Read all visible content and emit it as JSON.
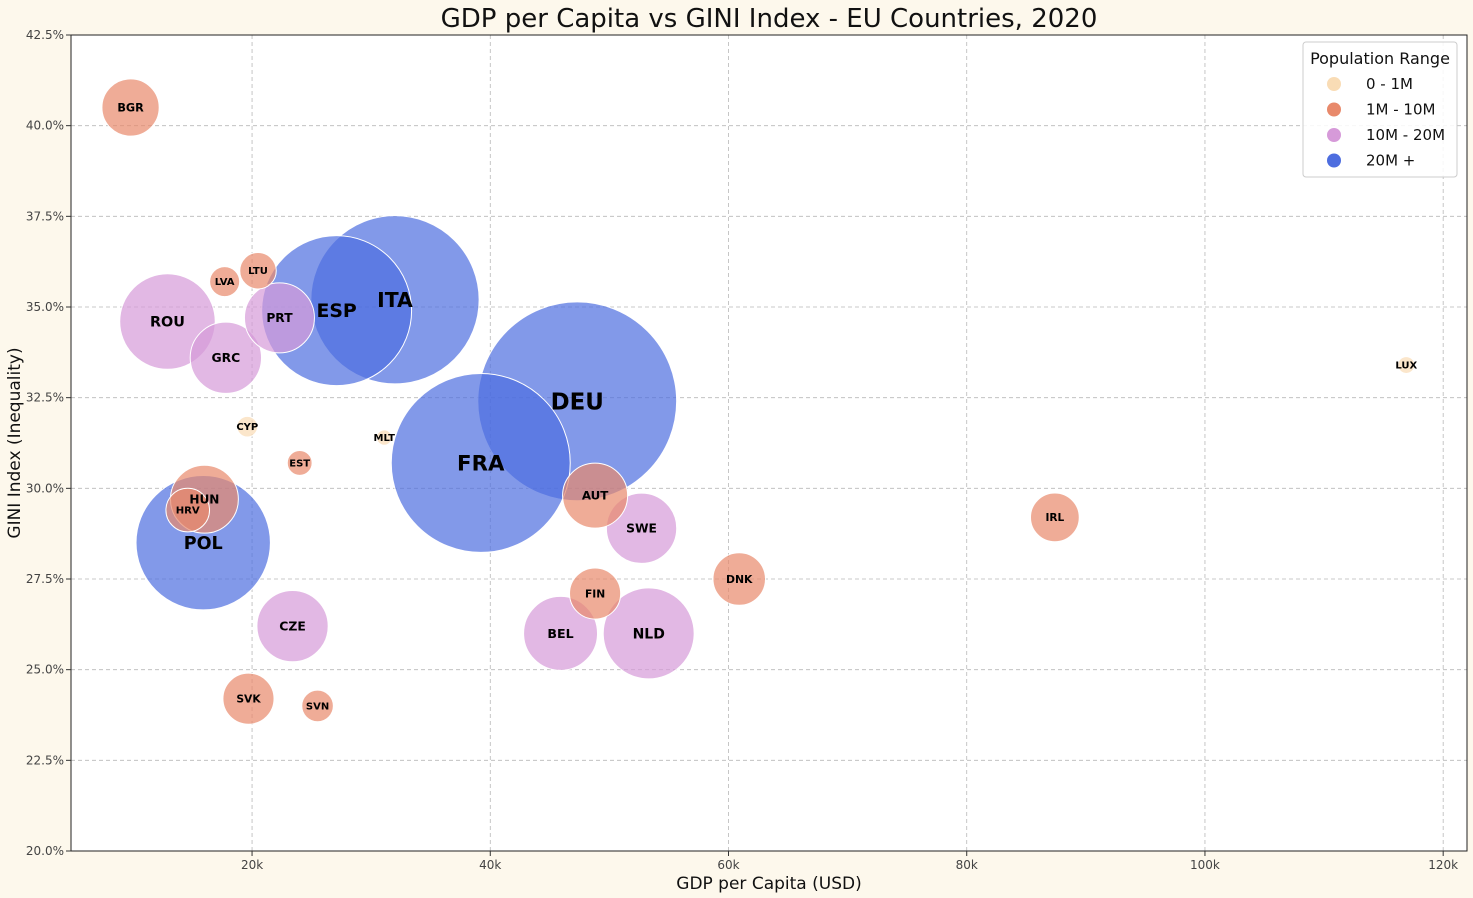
{
  "chart_data": {
    "type": "scatter",
    "title": "GDP per Capita vs GINI Index - EU Countries, 2020",
    "xlabel": "GDP per Capita (USD)",
    "ylabel": "GINI Index (Inequality)",
    "xlim": [
      4800,
      122000
    ],
    "ylim": [
      20.0,
      42.5
    ],
    "xticks": [
      20000,
      40000,
      60000,
      80000,
      100000,
      120000
    ],
    "xtick_labels": [
      "20k",
      "40k",
      "60k",
      "80k",
      "100k",
      "120k"
    ],
    "yticks": [
      20.0,
      22.5,
      25.0,
      27.5,
      30.0,
      32.5,
      35.0,
      37.5,
      40.0,
      42.5
    ],
    "ytick_labels": [
      "20.0%",
      "22.5%",
      "25.0%",
      "27.5%",
      "30.0%",
      "32.5%",
      "35.0%",
      "37.5%",
      "40.0%",
      "42.5%"
    ],
    "grid": true,
    "bubble_size": "population",
    "legend": {
      "title": "Population Range",
      "position": "top-right",
      "entries": [
        {
          "label": "0 - 1M",
          "color": "#f9dcb5"
        },
        {
          "label": "1M - 10M",
          "color": "#e8896b"
        },
        {
          "label": "10M - 20M",
          "color": "#d69ad9"
        },
        {
          "label": "20M +",
          "color": "#4d6ddf"
        }
      ]
    },
    "points": [
      {
        "label": "BGR",
        "x": 9800,
        "y": 40.5,
        "range": "1M - 10M",
        "population_m": 6.9
      },
      {
        "label": "LTU",
        "x": 20500,
        "y": 36.0,
        "range": "1M - 10M",
        "population_m": 2.8
      },
      {
        "label": "LVA",
        "x": 17700,
        "y": 35.7,
        "range": "1M - 10M",
        "population_m": 1.9
      },
      {
        "label": "ROU",
        "x": 12900,
        "y": 34.6,
        "range": "10M - 20M",
        "population_m": 19.2
      },
      {
        "label": "PRT",
        "x": 22300,
        "y": 34.7,
        "range": "10M - 20M",
        "population_m": 10.3
      },
      {
        "label": "GRC",
        "x": 17800,
        "y": 33.6,
        "range": "10M - 20M",
        "population_m": 10.7
      },
      {
        "label": "ESP",
        "x": 27100,
        "y": 34.9,
        "range": "20M +",
        "population_m": 47.3
      },
      {
        "label": "ITA",
        "x": 32000,
        "y": 35.2,
        "range": "20M +",
        "population_m": 59.6
      },
      {
        "label": "DEU",
        "x": 47300,
        "y": 32.4,
        "range": "20M +",
        "population_m": 83.2
      },
      {
        "label": "FRA",
        "x": 39200,
        "y": 30.7,
        "range": "20M +",
        "population_m": 67.4
      },
      {
        "label": "CYP",
        "x": 19600,
        "y": 31.7,
        "range": "0 - 1M",
        "population_m": 0.9
      },
      {
        "label": "MLT",
        "x": 31100,
        "y": 31.4,
        "range": "0 - 1M",
        "population_m": 0.5
      },
      {
        "label": "EST",
        "x": 24000,
        "y": 30.7,
        "range": "1M - 10M",
        "population_m": 1.3
      },
      {
        "label": "HUN",
        "x": 16000,
        "y": 29.7,
        "range": "1M - 10M",
        "population_m": 9.7
      },
      {
        "label": "HRV",
        "x": 14600,
        "y": 29.4,
        "range": "1M - 10M",
        "population_m": 4.0
      },
      {
        "label": "POL",
        "x": 15900,
        "y": 28.5,
        "range": "20M +",
        "population_m": 38.0
      },
      {
        "label": "AUT",
        "x": 48800,
        "y": 29.8,
        "range": "1M - 10M",
        "population_m": 8.9
      },
      {
        "label": "SWE",
        "x": 52700,
        "y": 28.9,
        "range": "10M - 20M",
        "population_m": 10.4
      },
      {
        "label": "IRL",
        "x": 87400,
        "y": 29.2,
        "range": "1M - 10M",
        "population_m": 5.0
      },
      {
        "label": "DNK",
        "x": 60900,
        "y": 27.5,
        "range": "1M - 10M",
        "population_m": 5.8
      },
      {
        "label": "FIN",
        "x": 48800,
        "y": 27.1,
        "range": "1M - 10M",
        "population_m": 5.5
      },
      {
        "label": "BEL",
        "x": 45900,
        "y": 26.0,
        "range": "10M - 20M",
        "population_m": 11.5
      },
      {
        "label": "NLD",
        "x": 53300,
        "y": 26.0,
        "range": "10M - 20M",
        "population_m": 17.4
      },
      {
        "label": "CZE",
        "x": 23400,
        "y": 26.2,
        "range": "10M - 20M",
        "population_m": 10.7
      },
      {
        "label": "SVK",
        "x": 19700,
        "y": 24.2,
        "range": "1M - 10M",
        "population_m": 5.5
      },
      {
        "label": "SVN",
        "x": 25500,
        "y": 24.0,
        "range": "1M - 10M",
        "population_m": 2.1
      },
      {
        "label": "LUX",
        "x": 116900,
        "y": 33.4,
        "range": "0 - 1M",
        "population_m": 0.6
      }
    ]
  }
}
